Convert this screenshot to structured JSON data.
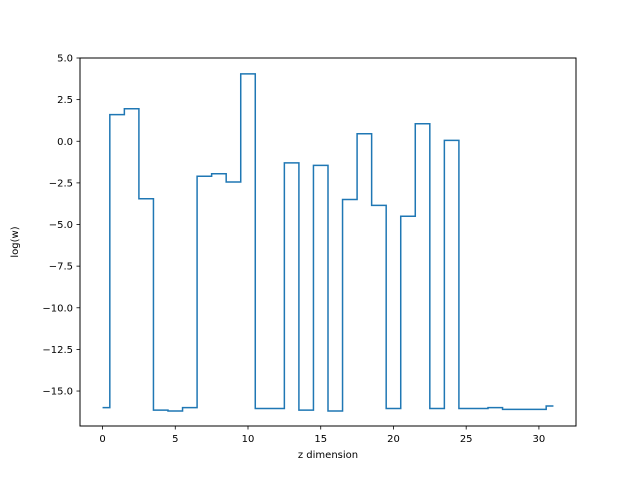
{
  "chart_data": {
    "type": "line",
    "drawstyle": "steps-mid",
    "title": "",
    "xlabel": "z dimension",
    "ylabel": "log(w)",
    "xlim": [
      -1.55,
      32.55
    ],
    "ylim": [
      -17.1,
      5.0
    ],
    "xticks": [
      0,
      5,
      10,
      15,
      20,
      25,
      30
    ],
    "xtick_labels": [
      "0",
      "5",
      "10",
      "15",
      "20",
      "25",
      "30"
    ],
    "yticks": [
      5.0,
      2.5,
      0.0,
      -2.5,
      -5.0,
      -7.5,
      -10.0,
      -12.5,
      -15.0
    ],
    "ytick_labels": [
      "5.0",
      "2.5",
      "0.0",
      "−2.5",
      "−5.0",
      "−7.5",
      "−10.0",
      "−12.5",
      "−15.0"
    ],
    "grid": false,
    "line_color": "#1f77b4",
    "series": [
      {
        "x": [
          0,
          1,
          2,
          3,
          4,
          5,
          6,
          7,
          8,
          9,
          10,
          11,
          12,
          13,
          14,
          15,
          16,
          17,
          18,
          19,
          20,
          21,
          22,
          23,
          24,
          25,
          26,
          27,
          28,
          29,
          30,
          31
        ],
        "values": [
          -16.0,
          1.6,
          1.95,
          -3.45,
          -16.15,
          -16.2,
          -16.0,
          -2.1,
          -1.95,
          -2.45,
          4.05,
          -16.05,
          -16.05,
          -1.3,
          -16.15,
          -1.45,
          -16.2,
          -3.5,
          0.45,
          -3.85,
          -16.05,
          -4.5,
          1.05,
          -16.05,
          0.05,
          -16.05,
          -16.05,
          -16.0,
          -16.1,
          -16.1,
          -16.1,
          -15.9
        ]
      }
    ]
  }
}
